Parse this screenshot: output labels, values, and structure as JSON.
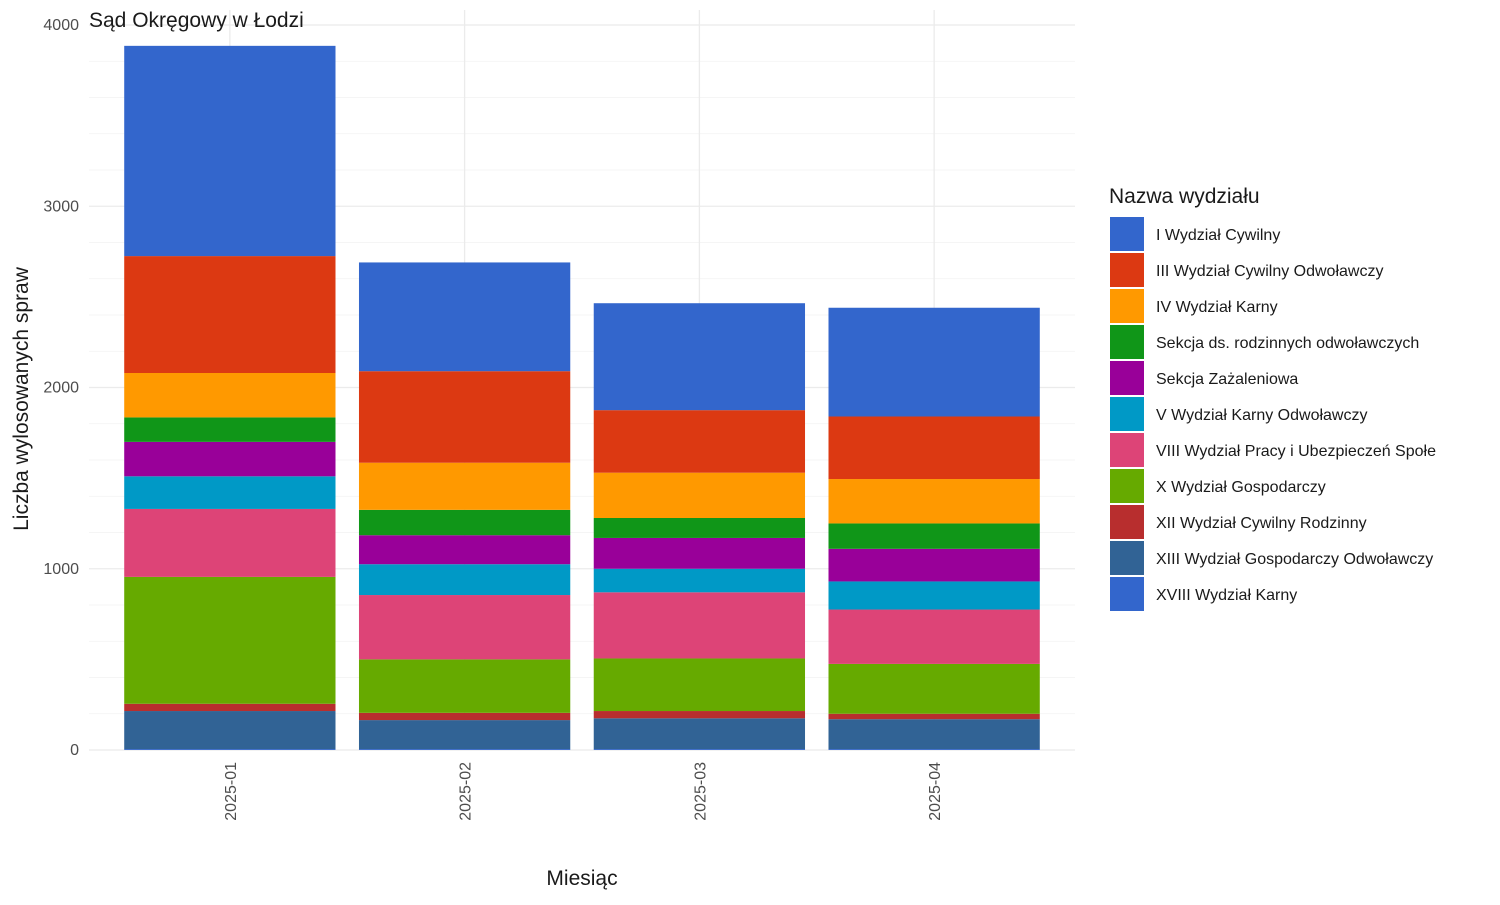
{
  "chart_data": {
    "type": "bar",
    "stacked": true,
    "title": "Sąd Okręgowy w Łodzi",
    "xlabel": "Miesiąc",
    "ylabel": "Liczba wylosowanych spraw",
    "ylim": [
      0,
      4000
    ],
    "yticks": [
      "0",
      "1000",
      "2000",
      "3000",
      "4000"
    ],
    "grid": true,
    "legend_title": "Nazwa wydziału",
    "legend_position": "right",
    "categories": [
      "2025-01",
      "2025-02",
      "2025-03",
      "2025-04"
    ],
    "series": [
      {
        "name": "XVIII Wydział Karny",
        "color": "#3366cc",
        "values": [
          5,
          5,
          5,
          5
        ]
      },
      {
        "name": "XIII Wydział Gospodarczy Odwoławczy",
        "color": "#316395",
        "values": [
          210,
          160,
          170,
          165
        ]
      },
      {
        "name": "XII Wydział Cywilny Rodzinny",
        "color": "#b82e2e",
        "values": [
          40,
          40,
          40,
          30
        ]
      },
      {
        "name": "X Wydział Gospodarczy",
        "color": "#66aa00",
        "values": [
          700,
          295,
          290,
          275
        ]
      },
      {
        "name": "VIII Wydział Pracy i Ubezpieczeń Społe",
        "color": "#dd4477",
        "values": [
          375,
          355,
          365,
          300
        ]
      },
      {
        "name": "V Wydział Karny Odwoławczy",
        "color": "#0099c6",
        "values": [
          180,
          170,
          130,
          155
        ]
      },
      {
        "name": "Sekcja Zażaleniowa",
        "color": "#990099",
        "values": [
          190,
          160,
          170,
          180
        ]
      },
      {
        "name": "Sekcja ds. rodzinnych odwoławczych",
        "color": "#109618",
        "values": [
          135,
          140,
          110,
          140
        ]
      },
      {
        "name": "IV Wydział Karny",
        "color": "#ff9900",
        "values": [
          245,
          260,
          250,
          245
        ]
      },
      {
        "name": "III Wydział Cywilny Odwoławczy",
        "color": "#dc3912",
        "values": [
          645,
          505,
          345,
          345
        ]
      },
      {
        "name": "I Wydział Cywilny",
        "color": "#3366cc",
        "values": [
          1160,
          600,
          590,
          600
        ]
      }
    ],
    "legend_order": [
      "I Wydział Cywilny",
      "III Wydział Cywilny Odwoławczy",
      "IV Wydział Karny",
      "Sekcja ds. rodzinnych odwoławczych",
      "Sekcja Zażaleniowa",
      "V Wydział Karny Odwoławczy",
      "VIII Wydział Pracy i Ubezpieczeń Społe",
      "X Wydział Gospodarczy",
      "XII Wydział Cywilny Rodzinny",
      "XIII Wydział Gospodarczy Odwoławczy",
      "XVIII Wydział Karny"
    ]
  }
}
